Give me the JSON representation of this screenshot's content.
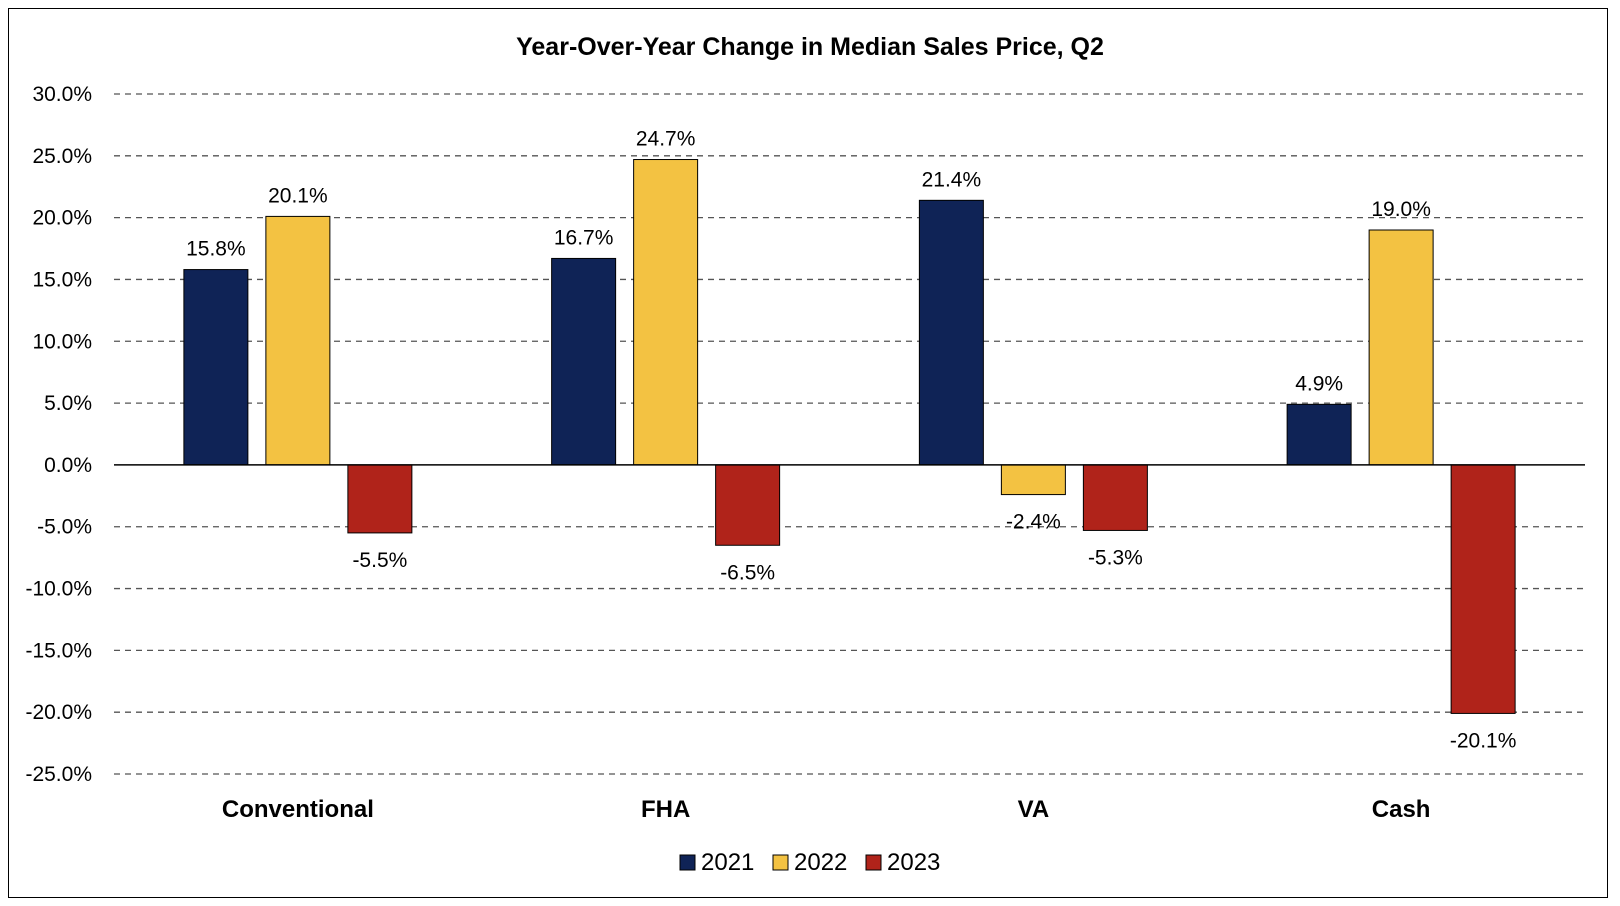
{
  "chart_data": {
    "type": "bar",
    "title": "Year-Over-Year Change in Median Sales Price, Q2",
    "categories": [
      "Conventional",
      "FHA",
      "VA",
      "Cash"
    ],
    "series": [
      {
        "name": "2021",
        "color": "#0f2356",
        "values": [
          15.8,
          16.7,
          21.4,
          4.9
        ],
        "labels": [
          "15.8%",
          "16.7%",
          "21.4%",
          "4.9%"
        ]
      },
      {
        "name": "2022",
        "color": "#f3c242",
        "values": [
          20.1,
          24.7,
          -2.4,
          19.0
        ],
        "labels": [
          "20.1%",
          "24.7%",
          "-2.4%",
          "19.0%"
        ]
      },
      {
        "name": "2023",
        "color": "#b0231a",
        "values": [
          -5.5,
          -6.5,
          -5.3,
          -20.1
        ],
        "labels": [
          "-5.5%",
          "-6.5%",
          "-5.3%",
          "-20.1%"
        ]
      }
    ],
    "ylim": [
      -25,
      30
    ],
    "yticks": [
      30,
      25,
      20,
      15,
      10,
      5,
      0,
      -5,
      -10,
      -15,
      -20,
      -25
    ],
    "ytick_labels": [
      "30.0%",
      "25.0%",
      "20.0%",
      "15.0%",
      "10.0%",
      "5.0%",
      "0.0%",
      "-5.0%",
      "-10.0%",
      "-15.0%",
      "-20.0%",
      "-25.0%"
    ],
    "grid": "dashed horizontal",
    "legend": "bottom-center"
  }
}
